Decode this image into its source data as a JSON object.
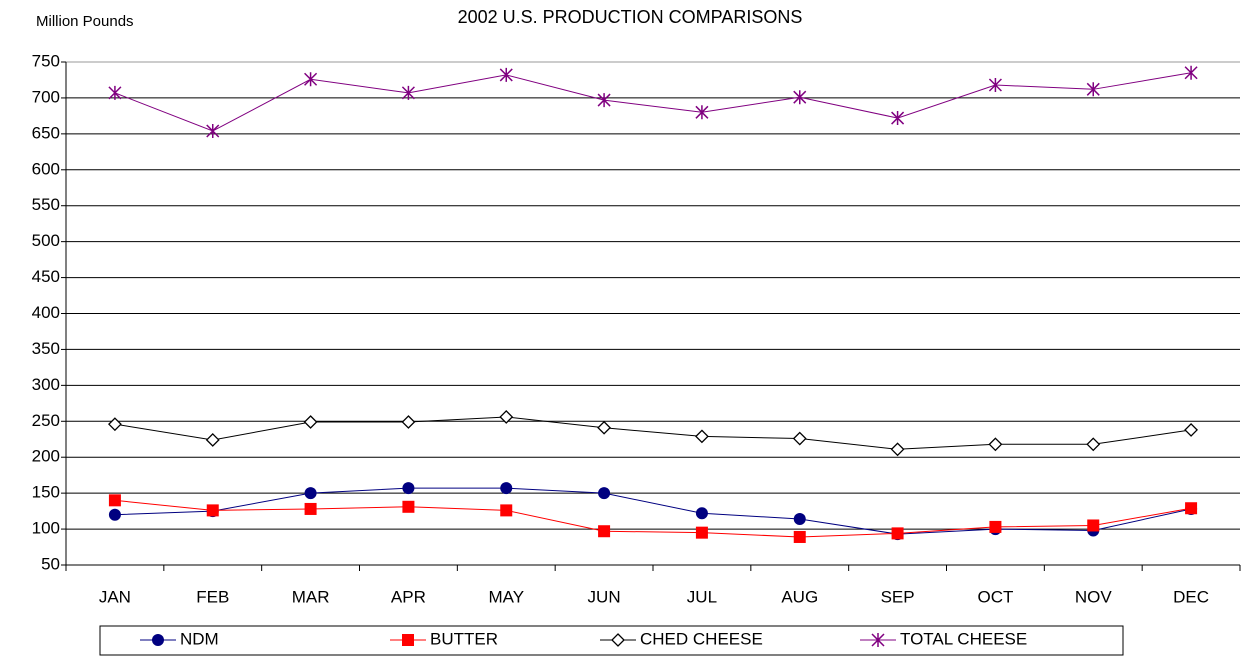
{
  "chart_data": {
    "type": "line",
    "title": "2002 U.S. PRODUCTION COMPARISONS",
    "y_label": "Million Pounds",
    "categories": [
      "JAN",
      "FEB",
      "MAR",
      "APR",
      "MAY",
      "JUN",
      "JUL",
      "AUG",
      "SEP",
      "OCT",
      "NOV",
      "DEC"
    ],
    "series": [
      {
        "name": "NDM",
        "color": "#000080",
        "marker": "circle",
        "values": [
          120,
          125,
          150,
          157,
          157,
          150,
          122,
          114,
          93,
          100,
          98,
          128
        ]
      },
      {
        "name": "BUTTER",
        "color": "#ff0000",
        "marker": "square",
        "values": [
          140,
          126,
          128,
          131,
          126,
          97,
          95,
          89,
          94,
          103,
          105,
          129
        ]
      },
      {
        "name": "CHED CHEESE",
        "color": "#000000",
        "marker": "diamond",
        "values": [
          246,
          224,
          249,
          249,
          256,
          241,
          229,
          226,
          211,
          218,
          218,
          238
        ]
      },
      {
        "name": "TOTAL CHEESE",
        "color": "#800080",
        "marker": "asterisk",
        "values": [
          707,
          654,
          726,
          707,
          732,
          697,
          680,
          701,
          672,
          718,
          712,
          735
        ]
      }
    ],
    "ylim": [
      50,
      750
    ],
    "yticks": [
      50,
      100,
      150,
      200,
      250,
      300,
      350,
      400,
      450,
      500,
      550,
      600,
      650,
      700,
      750
    ],
    "grid": true,
    "legend": "bottom"
  }
}
